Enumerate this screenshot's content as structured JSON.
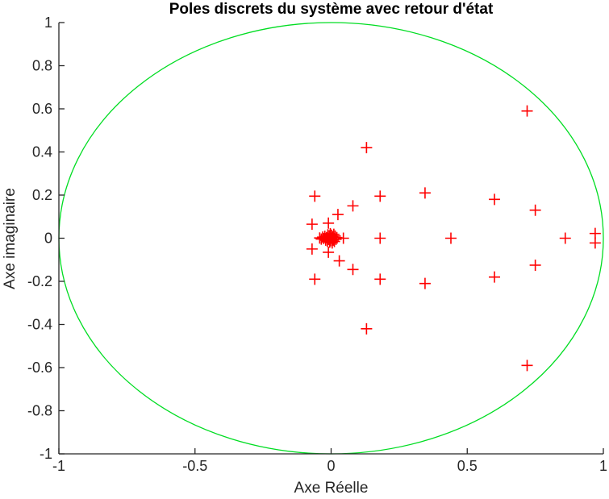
{
  "chart_data": {
    "type": "scatter",
    "title": "Poles discrets du système avec retour d'état",
    "xlabel": "Axe Réelle",
    "ylabel": "Axe imaginaire",
    "xlim": [
      -1,
      1
    ],
    "ylim": [
      -1,
      1
    ],
    "xticks": [
      -1,
      -0.5,
      0,
      0.5,
      1
    ],
    "yticks": [
      -1,
      -0.8,
      -0.6,
      -0.4,
      -0.2,
      0,
      0.2,
      0.4,
      0.6,
      0.8,
      1
    ],
    "grid": false,
    "legend": "none",
    "axis_color": "#262626",
    "background": "#ffffff",
    "unit_circle": {
      "radius": 1,
      "color": "#00dd22",
      "stroke_width": 1.3
    },
    "marker": {
      "symbol": "+",
      "color": "#ff0000",
      "size": 14,
      "stroke_width": 1.6
    },
    "poles": [
      [
        0.72,
        0.59
      ],
      [
        0.72,
        -0.59
      ],
      [
        0.13,
        0.42
      ],
      [
        0.13,
        -0.42
      ],
      [
        0.345,
        0.21
      ],
      [
        0.345,
        -0.21
      ],
      [
        0.18,
        0.195
      ],
      [
        0.18,
        -0.19
      ],
      [
        -0.06,
        0.195
      ],
      [
        -0.06,
        -0.19
      ],
      [
        0.6,
        0.18
      ],
      [
        0.6,
        -0.18
      ],
      [
        0.75,
        0.13
      ],
      [
        0.75,
        -0.125
      ],
      [
        0.08,
        0.15
      ],
      [
        0.08,
        -0.145
      ],
      [
        0.025,
        0.11
      ],
      [
        0.03,
        -0.105
      ],
      [
        -0.01,
        0.07
      ],
      [
        -0.01,
        -0.065
      ],
      [
        -0.07,
        0.065
      ],
      [
        -0.07,
        -0.05
      ],
      [
        0.97,
        0.022
      ],
      [
        0.97,
        -0.022
      ],
      [
        0.86,
        0
      ],
      [
        0.44,
        0
      ],
      [
        0.18,
        0
      ],
      [
        0.045,
        0
      ],
      [
        -0.042,
        0.001
      ],
      [
        -0.036,
        -0.004
      ],
      [
        -0.031,
        0.005
      ],
      [
        -0.027,
        -0.002
      ],
      [
        -0.023,
        0.009
      ],
      [
        -0.02,
        -0.009
      ],
      [
        -0.017,
        0.003
      ],
      [
        -0.014,
        -0.014
      ],
      [
        -0.012,
        0.016
      ],
      [
        -0.009,
        -0.006
      ],
      [
        -0.007,
        0.011
      ],
      [
        -0.005,
        -0.018
      ],
      [
        -0.003,
        0.021
      ],
      [
        -0.002,
        -0.011
      ],
      [
        0,
        0
      ],
      [
        0.002,
        0.014
      ],
      [
        0.004,
        -0.022
      ],
      [
        0.006,
        0.007
      ],
      [
        0.008,
        -0.009
      ],
      [
        0.01,
        0.018
      ],
      [
        0.012,
        -0.015
      ],
      [
        0.015,
        0.01
      ],
      [
        0.018,
        -0.005
      ],
      [
        0.021,
        0.003
      ]
    ]
  }
}
